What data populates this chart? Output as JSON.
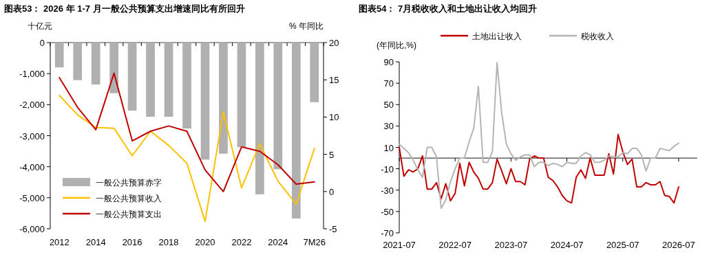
{
  "chart_data": [
    {
      "type": "bar",
      "title": "图表53： 2026 年 1-7 月一般公共预算支出增速同比有所回升",
      "ylabel": "十亿元",
      "y2label": "% 年同比",
      "categories": [
        "2012",
        null,
        "2014",
        null,
        "2016",
        null,
        "2018",
        null,
        "2020",
        null,
        "2022",
        null,
        "2024",
        null,
        "7M26"
      ],
      "series": [
        {
          "name": "一般公共预算赤字",
          "color": "#b0b0b0",
          "values": [
            -800,
            -1210,
            -1350,
            -1630,
            -2190,
            -2390,
            -2390,
            -2770,
            -3770,
            -3580,
            -3370,
            -4890,
            -4080,
            -5670,
            -1920
          ]
        },
        {
          "name": "一般公共预算收入",
          "type": "line",
          "axis": "y2",
          "color": "#ffc000",
          "values": [
            12.9,
            10.3,
            8.6,
            8.5,
            4.8,
            8.1,
            6.2,
            3.8,
            -4.0,
            10.7,
            0.5,
            6.4,
            1.4,
            -1.7,
            5.8
          ]
        },
        {
          "name": "一般公共预算支出",
          "type": "line",
          "axis": "y2",
          "color": "#c00000",
          "values": [
            15.3,
            11.3,
            8.3,
            15.9,
            6.8,
            8.1,
            8.8,
            8.1,
            2.9,
            0.0,
            6.0,
            5.4,
            3.6,
            1.0,
            1.3
          ]
        }
      ],
      "ylim": [
        -6000,
        0
      ],
      "yticks": [
        {
          "value": -6000,
          "label": "-6,000"
        },
        {
          "value": -5000,
          "label": "-5,000"
        },
        {
          "value": -4000,
          "label": "-4,000"
        },
        {
          "value": -3000,
          "label": "-3,000"
        },
        {
          "value": -2000,
          "label": "-2,000"
        },
        {
          "value": -1000,
          "label": "-1,000"
        },
        0
      ],
      "y2lim": [
        -5,
        20
      ],
      "y2ticks": [
        -5,
        0,
        5,
        10,
        15,
        20
      ],
      "legend": "bottom left"
    },
    {
      "type": "line",
      "title": "图表54： 7月税收收入和土地出让收入均回升",
      "ylabel": "(年同比,%)",
      "x": [
        "2021-07",
        "2021-08",
        "2021-09",
        "2021-10",
        "2021-11",
        "2021-12",
        "2022-01",
        "2022-02",
        "2022-03",
        "2022-04",
        "2022-05",
        "2022-06",
        "2022-07",
        "2022-08",
        "2022-09",
        "2022-10",
        "2022-11",
        "2022-12",
        "2023-01",
        "2023-02",
        "2023-03",
        "2023-04",
        "2023-05",
        "2023-06",
        "2023-07",
        "2023-08",
        "2023-09",
        "2023-10",
        "2023-11",
        "2023-12",
        "2024-01",
        "2024-02",
        "2024-03",
        "2024-04",
        "2024-05",
        "2024-06",
        "2024-07",
        "2024-08",
        "2024-09",
        "2024-10",
        "2024-11",
        "2024-12",
        "2025-01",
        "2025-02",
        "2025-03",
        "2025-04",
        "2025-05",
        "2025-06",
        "2025-07",
        "2025-08",
        "2025-09",
        "2025-10",
        "2025-11",
        "2025-12",
        "2026-01",
        "2026-02",
        "2026-03",
        "2026-04",
        "2026-05",
        "2026-06",
        "2026-07"
      ],
      "series": [
        {
          "name": "土地出让收入",
          "color": "#c00000",
          "values": [
            10,
            -17,
            -11,
            -13,
            -10,
            2,
            -29,
            -29,
            -23,
            -38,
            -24,
            -40,
            -33,
            -5,
            -26,
            -4,
            -13,
            -19,
            -29,
            -29,
            -23,
            -1,
            -12,
            -24,
            -10,
            -22,
            -22,
            -25,
            -1,
            2,
            0,
            0,
            -18,
            -21,
            -27,
            -35,
            -40,
            -42,
            -18,
            -11,
            -19,
            0,
            -16,
            -16,
            -16,
            4,
            -15,
            22,
            6,
            -6,
            -1,
            -27,
            -27,
            -23,
            -25,
            -25,
            -22,
            -35,
            -36,
            -42,
            -27
          ]
        },
        {
          "name": "税收收入",
          "color": "#b4b4b4",
          "values": [
            13,
            9,
            5,
            -2,
            -11,
            -18,
            10,
            10,
            1,
            -47,
            -39,
            -22,
            -10,
            0,
            0,
            15,
            28,
            67,
            -4,
            -4,
            6,
            89,
            42,
            13,
            4,
            -2,
            1,
            3,
            3,
            -8,
            -4,
            -4,
            -7,
            -5,
            -6,
            -8,
            -4,
            -5,
            -5,
            2,
            5,
            3,
            -4,
            -4,
            -2,
            2,
            1,
            1,
            5,
            4,
            9,
            9,
            3,
            -12,
            0,
            0,
            9,
            8,
            7,
            11,
            14
          ]
        }
      ],
      "xlim": [
        "2021-07",
        "2026-11"
      ],
      "xticks": [
        "2021-07",
        "2022-07",
        "2023-07",
        "2024-07",
        "2025-07",
        "2026-07"
      ],
      "ylim": [
        -70,
        90
      ],
      "yticks": [
        -70,
        -50,
        -30,
        -10,
        10,
        30,
        50,
        70,
        90
      ],
      "legend": "top"
    }
  ]
}
